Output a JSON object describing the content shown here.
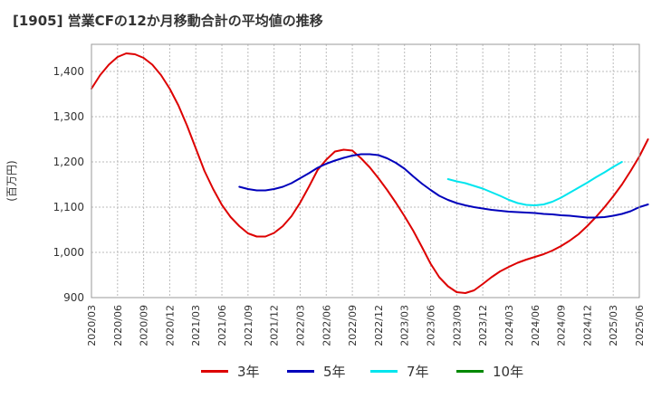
{
  "title": "[1905]  営業CFの12か月移動合計の平均値の推移",
  "chart_data": {
    "type": "line",
    "title": "[1905]  営業CFの12か月移動合計の平均値の推移",
    "ylabel": "(百万円)",
    "xlabel": "",
    "ylim": [
      900,
      1460
    ],
    "yticks": [
      900,
      1000,
      1100,
      1200,
      1300,
      1400
    ],
    "ytick_labels": [
      "900",
      "1,000",
      "1,100",
      "1,200",
      "1,300",
      "1,400"
    ],
    "xticks": [
      "2020/03",
      "2020/06",
      "2020/09",
      "2020/12",
      "2021/03",
      "2021/06",
      "2021/09",
      "2021/12",
      "2022/03",
      "2022/06",
      "2022/09",
      "2022/12",
      "2023/03",
      "2023/06",
      "2023/09",
      "2023/12",
      "2024/03",
      "2024/06",
      "2024/09",
      "2024/12",
      "2025/03",
      "2025/06"
    ],
    "grid": true,
    "legend_position": "bottom",
    "series": [
      {
        "name": "3年",
        "color": "#dd0000",
        "start": "2020/03",
        "values": [
          1362,
          1392,
          1415,
          1432,
          1440,
          1438,
          1430,
          1415,
          1392,
          1362,
          1325,
          1280,
          1230,
          1180,
          1140,
          1105,
          1078,
          1058,
          1042,
          1035,
          1035,
          1043,
          1058,
          1080,
          1110,
          1145,
          1182,
          1205,
          1223,
          1227,
          1225,
          1208,
          1188,
          1164,
          1138,
          1110,
          1080,
          1048,
          1012,
          975,
          945,
          925,
          912,
          910,
          916,
          930,
          945,
          958,
          968,
          977,
          984,
          990,
          996,
          1004,
          1014,
          1026,
          1040,
          1058,
          1078,
          1100,
          1124,
          1150,
          1180,
          1212,
          1250
        ]
      },
      {
        "name": "5年",
        "color": "#0000bb",
        "start": "2021/08",
        "values": [
          1145,
          1140,
          1137,
          1137,
          1140,
          1145,
          1153,
          1164,
          1175,
          1187,
          1196,
          1203,
          1209,
          1214,
          1217,
          1217,
          1215,
          1208,
          1198,
          1185,
          1168,
          1152,
          1138,
          1125,
          1116,
          1109,
          1104,
          1100,
          1097,
          1094,
          1092,
          1090,
          1089,
          1088,
          1087,
          1085,
          1084,
          1082,
          1081,
          1079,
          1077,
          1077,
          1078,
          1081,
          1085,
          1091,
          1100,
          1106
        ]
      },
      {
        "name": "7年",
        "color": "#00e5ee",
        "start": "2023/08",
        "values": [
          1162,
          1157,
          1153,
          1147,
          1141,
          1133,
          1125,
          1116,
          1109,
          1105,
          1104,
          1106,
          1112,
          1121,
          1132,
          1143,
          1154,
          1166,
          1177,
          1189,
          1200
        ]
      },
      {
        "name": "10年",
        "color": "#008800",
        "start": "2025/03",
        "values": []
      }
    ]
  }
}
